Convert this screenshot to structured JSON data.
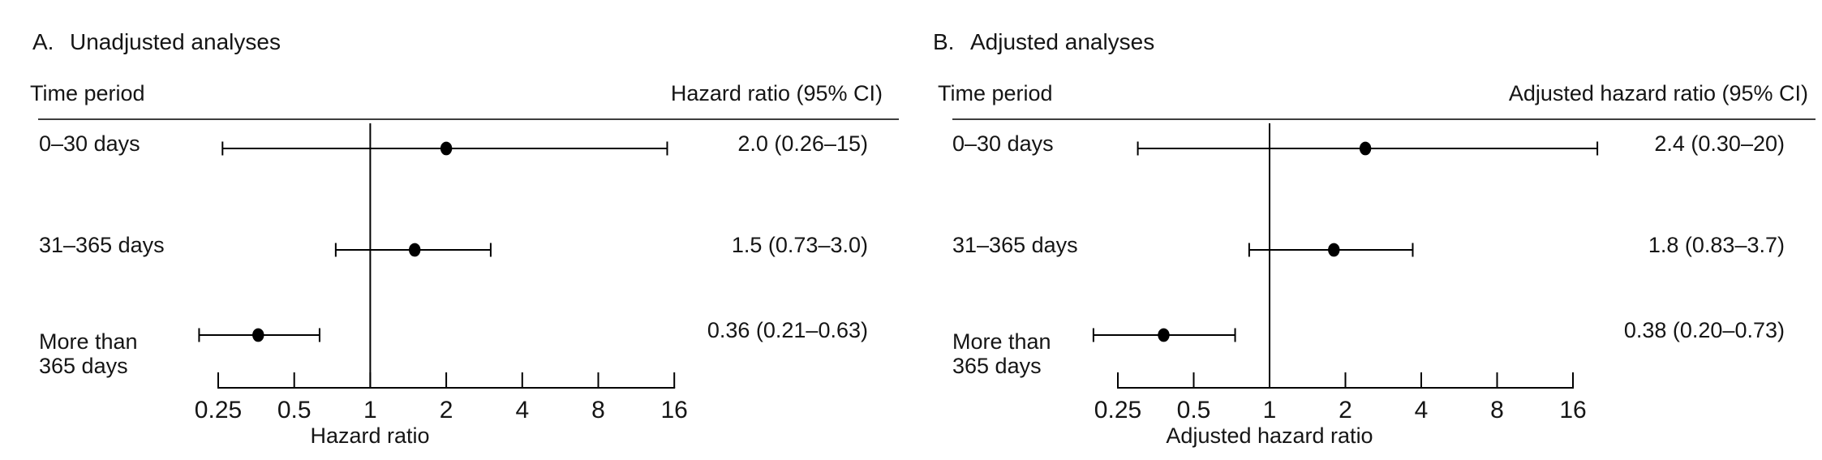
{
  "chart_data": [
    {
      "type": "scatter",
      "subtype": "forest-plot",
      "panel_letter": "A.",
      "title": "Unadjusted analyses",
      "columns": {
        "left": "Time period",
        "right": "Hazard ratio (95% CI)"
      },
      "xlabel": "Hazard ratio",
      "axis": {
        "scale": "log2",
        "xlim": [
          0.25,
          16
        ],
        "ticks": [
          "0.25",
          "0.5",
          "1",
          "2",
          "4",
          "8",
          "16"
        ],
        "reference_line": 1,
        "grid": false,
        "legend": "none"
      },
      "rows": [
        {
          "label_lines": [
            "0–30 days"
          ],
          "hr": 2.0,
          "ci": [
            0.26,
            15
          ],
          "display": "2.0 (0.26–15)"
        },
        {
          "label_lines": [
            "31–365 days"
          ],
          "hr": 1.5,
          "ci": [
            0.73,
            3.0
          ],
          "display": "1.5 (0.73–3.0)"
        },
        {
          "label_lines": [
            "More than",
            "365 days"
          ],
          "hr": 0.36,
          "ci": [
            0.21,
            0.63
          ],
          "display": "0.36 (0.21–0.63)"
        }
      ]
    },
    {
      "type": "scatter",
      "subtype": "forest-plot",
      "panel_letter": "B.",
      "title": "Adjusted analyses",
      "columns": {
        "left": "Time period",
        "right": "Adjusted hazard ratio (95% CI)"
      },
      "xlabel": "Adjusted hazard ratio",
      "axis": {
        "scale": "log2",
        "xlim": [
          0.25,
          16
        ],
        "ticks": [
          "0.25",
          "0.5",
          "1",
          "2",
          "4",
          "8",
          "16"
        ],
        "reference_line": 1,
        "grid": false,
        "legend": "none"
      },
      "rows": [
        {
          "label_lines": [
            "0–30 days"
          ],
          "hr": 2.4,
          "ci": [
            0.3,
            20
          ],
          "display": "2.4 (0.30–20)"
        },
        {
          "label_lines": [
            "31–365 days"
          ],
          "hr": 1.8,
          "ci": [
            0.83,
            3.7
          ],
          "display": "1.8 (0.83–3.7)"
        },
        {
          "label_lines": [
            "More than",
            "365 days"
          ],
          "hr": 0.38,
          "ci": [
            0.2,
            0.73
          ],
          "display": "0.38 (0.20–0.73)"
        }
      ]
    }
  ],
  "colors": {
    "text": "#151515",
    "plot_lines": "#000000",
    "header_rule": "#3e3e3e",
    "background": "#ffffff"
  }
}
